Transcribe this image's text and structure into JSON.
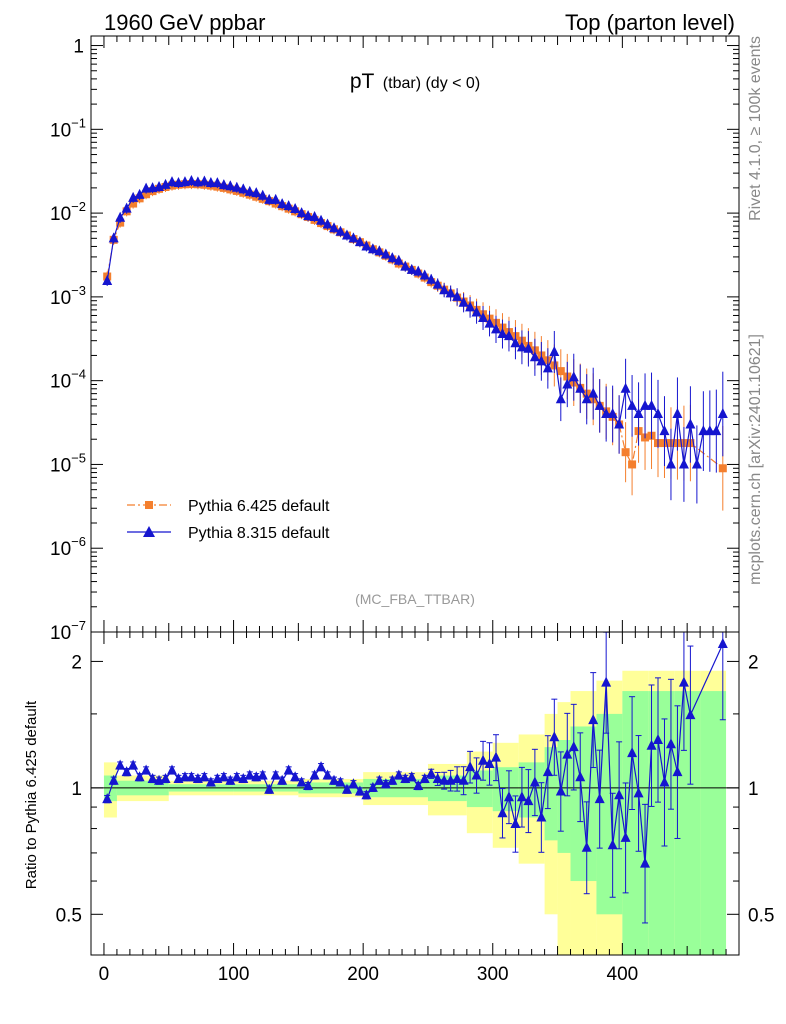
{
  "header": {
    "left": "1960 GeV ppbar",
    "right": "Top (parton level)"
  },
  "side": {
    "top": "Rivet 4.1.0, ≥ 100k events",
    "bottom": "mcplots.cern.ch [arXiv:2401.10621]"
  },
  "chart_data": [
    {
      "type": "line",
      "title": "pT",
      "title_sub": "(tbar) (dy < 0)",
      "analysis_tag": "(MC_FBA_TTBAR)",
      "xlabel": "",
      "ylabel": "",
      "yscale": "log",
      "xlim": [
        -10,
        490
      ],
      "ylim": [
        1e-07,
        1.3
      ],
      "y_ticks": [
        {
          "value": 1,
          "base": "1",
          "exp": ""
        },
        {
          "value": 0.1,
          "base": "10",
          "exp": "−1"
        },
        {
          "value": 0.01,
          "base": "10",
          "exp": "−2"
        },
        {
          "value": 0.001,
          "base": "10",
          "exp": "−3"
        },
        {
          "value": 0.0001,
          "base": "10",
          "exp": "−4"
        },
        {
          "value": 1e-05,
          "base": "10",
          "exp": "−5"
        },
        {
          "value": 1e-06,
          "base": "10",
          "exp": "−6"
        },
        {
          "value": 1e-07,
          "base": "10",
          "exp": "−7"
        }
      ],
      "legend": {
        "placement": "lower-left",
        "entries": [
          "Pythia 6.425 default",
          "Pythia 8.315 default"
        ]
      },
      "series": [
        {
          "name": "Pythia 6.425 default",
          "color": "#f47f2e",
          "style": "dash-dot-squares",
          "x": [
            2.5,
            7.5,
            12.5,
            17.5,
            22.5,
            27.5,
            32.5,
            37.5,
            42.5,
            47.5,
            52.5,
            57.5,
            62.5,
            67.5,
            72.5,
            77.5,
            82.5,
            87.5,
            92.5,
            97.5,
            102.5,
            107.5,
            112.5,
            117.5,
            122.5,
            127.5,
            132.5,
            137.5,
            142.5,
            147.5,
            152.5,
            157.5,
            162.5,
            167.5,
            172.5,
            177.5,
            182.5,
            187.5,
            192.5,
            197.5,
            202.5,
            207.5,
            212.5,
            217.5,
            222.5,
            227.5,
            232.5,
            237.5,
            242.5,
            247.5,
            252.5,
            257.5,
            262.5,
            267.5,
            272.5,
            277.5,
            282.5,
            287.5,
            292.5,
            297.5,
            302.5,
            307.5,
            312.5,
            317.5,
            322.5,
            327.5,
            332.5,
            337.5,
            342.5,
            347.5,
            352.5,
            357.5,
            362.5,
            367.5,
            372.5,
            377.5,
            382.5,
            387.5,
            392.5,
            397.5,
            402.5,
            407.5,
            412.5,
            417.5,
            422.5,
            427.5,
            432.5,
            437.5,
            442.5,
            447.5,
            452.5,
            477.5
          ],
          "y": [
            0.00175,
            0.0048,
            0.0077,
            0.0105,
            0.013,
            0.015,
            0.0168,
            0.0183,
            0.0195,
            0.0205,
            0.0213,
            0.0218,
            0.0221,
            0.0222,
            0.0221,
            0.0218,
            0.0213,
            0.0207,
            0.02,
            0.0192,
            0.0184,
            0.0175,
            0.0166,
            0.0157,
            0.0148,
            0.0139,
            0.013,
            0.0121,
            0.0113,
            0.0105,
            0.0097,
            0.009,
            0.0083,
            0.0076,
            0.007,
            0.0064,
            0.0059,
            0.0054,
            0.0049,
            0.0045,
            0.0041,
            0.0037,
            0.0034,
            0.0031,
            0.0028,
            0.0025,
            0.0023,
            0.0021,
            0.0019,
            0.0017,
            0.0015,
            0.00136,
            0.00122,
            0.0011,
            0.00098,
            0.00088,
            0.00079,
            0.0007,
            0.00062,
            0.00055,
            0.00049,
            0.00043,
            0.00038,
            0.00034,
            0.0003,
            0.00026,
            0.00023,
            0.0002,
            0.000175,
            0.000152,
            0.00013,
            0.000112,
            9.5e-05,
            8.2e-05,
            7e-05,
            6e-05,
            5e-05,
            4.3e-05,
            3.7e-05,
            3e-05,
            1.4e-05,
            1e-05,
            2.5e-05,
            2.1e-05,
            2.2e-05,
            1.8e-05,
            1.8e-05,
            1.8e-05,
            1.8e-05,
            1.8e-05,
            1.8e-05,
            9e-06
          ]
        },
        {
          "name": "Pythia 8.315 default",
          "color": "#1515cf",
          "style": "solid-triangles",
          "x": [
            2.5,
            7.5,
            12.5,
            17.5,
            22.5,
            27.5,
            32.5,
            37.5,
            42.5,
            47.5,
            52.5,
            57.5,
            62.5,
            67.5,
            72.5,
            77.5,
            82.5,
            87.5,
            92.5,
            97.5,
            102.5,
            107.5,
            112.5,
            117.5,
            122.5,
            127.5,
            132.5,
            137.5,
            142.5,
            147.5,
            152.5,
            157.5,
            162.5,
            167.5,
            172.5,
            177.5,
            182.5,
            187.5,
            192.5,
            197.5,
            202.5,
            207.5,
            212.5,
            217.5,
            222.5,
            227.5,
            232.5,
            237.5,
            242.5,
            247.5,
            252.5,
            257.5,
            262.5,
            267.5,
            272.5,
            277.5,
            282.5,
            287.5,
            292.5,
            297.5,
            302.5,
            307.5,
            312.5,
            317.5,
            322.5,
            327.5,
            332.5,
            337.5,
            342.5,
            347.5,
            352.5,
            357.5,
            362.5,
            367.5,
            372.5,
            377.5,
            382.5,
            387.5,
            392.5,
            397.5,
            402.5,
            407.5,
            412.5,
            417.5,
            422.5,
            427.5,
            432.5,
            437.5,
            442.5,
            447.5,
            452.5,
            457.5,
            462.5,
            467.5,
            472.5,
            477.5
          ],
          "y": [
            0.00155,
            0.005,
            0.0088,
            0.0113,
            0.0152,
            0.0165,
            0.0196,
            0.0199,
            0.0205,
            0.0217,
            0.0234,
            0.0229,
            0.0234,
            0.0242,
            0.0233,
            0.0238,
            0.0229,
            0.0228,
            0.0216,
            0.0209,
            0.0201,
            0.0192,
            0.0179,
            0.0173,
            0.0161,
            0.0144,
            0.0144,
            0.0128,
            0.0121,
            0.0112,
            0.01,
            0.0092,
            0.009,
            0.0081,
            0.0073,
            0.0066,
            0.006,
            0.0054,
            0.005,
            0.0045,
            0.004,
            0.0037,
            0.0035,
            0.0032,
            0.0029,
            0.0027,
            0.0023,
            0.0021,
            0.002,
            0.0018,
            0.0016,
            0.0014,
            0.0012,
            0.0011,
            0.001,
            0.00085,
            0.00075,
            0.00065,
            0.00056,
            0.00048,
            0.00041,
            0.00036,
            0.00034,
            0.00028,
            0.00025,
            0.00024,
            0.00019,
            0.00017,
            0.00014,
            0.00022,
            6e-05,
            9e-05,
            0.00011,
            8e-05,
            6e-05,
            7e-05,
            5e-05,
            4e-05,
            4e-05,
            3e-05,
            8e-05,
            5e-05,
            4e-05,
            5e-05,
            5e-05,
            4e-05,
            2.5e-05,
            1e-05,
            4e-05,
            1e-05,
            3e-05,
            1e-05,
            2.5e-05,
            2.5e-05,
            2.5e-05,
            4e-05
          ]
        }
      ]
    },
    {
      "type": "line",
      "ylabel": "Ratio to Pythia 6.425 default",
      "yscale": "log",
      "xlim": [
        -10,
        490
      ],
      "ylim": [
        0.4,
        2.35
      ],
      "x_ticks": [
        "0",
        "100",
        "200",
        "300",
        "400"
      ],
      "x_tick_values": [
        0,
        100,
        200,
        300,
        400
      ],
      "y_ticks": [
        "0.5",
        "1",
        "2"
      ],
      "y_tick_values": [
        0.5,
        1,
        2
      ],
      "reference_line": 1,
      "bands": [
        {
          "name": "stat uncertainty (yellow)",
          "color": "#ffff99",
          "x_edges": [
            0,
            10,
            50,
            100,
            150,
            200,
            250,
            280,
            300,
            320,
            340,
            350,
            360,
            380,
            400,
            420,
            440,
            460,
            480
          ],
          "half_width": [
            0.15,
            0.07,
            0.04,
            0.04,
            0.05,
            0.09,
            0.14,
            0.22,
            0.28,
            0.34,
            0.5,
            0.6,
            0.7,
            0.8,
            0.9,
            0.9,
            0.9,
            0.9,
            0.9
          ]
        },
        {
          "name": "stat uncertainty (green)",
          "color": "#99ff99",
          "x_edges": [
            0,
            10,
            50,
            100,
            150,
            200,
            250,
            280,
            300,
            320,
            340,
            350,
            360,
            380,
            400,
            420,
            440,
            460,
            480
          ],
          "half_width": [
            0.07,
            0.04,
            0.02,
            0.02,
            0.03,
            0.05,
            0.07,
            0.1,
            0.12,
            0.15,
            0.25,
            0.3,
            0.4,
            0.5,
            0.7,
            0.7,
            0.7,
            0.7,
            0.7
          ]
        }
      ],
      "series": [
        {
          "name": "Pythia 8.315 default / Pythia 6.425 default",
          "color": "#1515cf",
          "x": [
            2.5,
            7.5,
            12.5,
            17.5,
            22.5,
            27.5,
            32.5,
            37.5,
            42.5,
            47.5,
            52.5,
            57.5,
            62.5,
            67.5,
            72.5,
            77.5,
            82.5,
            87.5,
            92.5,
            97.5,
            102.5,
            107.5,
            112.5,
            117.5,
            122.5,
            127.5,
            132.5,
            137.5,
            142.5,
            147.5,
            152.5,
            157.5,
            162.5,
            167.5,
            172.5,
            177.5,
            182.5,
            187.5,
            192.5,
            197.5,
            202.5,
            207.5,
            212.5,
            217.5,
            222.5,
            227.5,
            232.5,
            237.5,
            242.5,
            247.5,
            252.5,
            257.5,
            262.5,
            267.5,
            272.5,
            277.5,
            282.5,
            287.5,
            292.5,
            297.5,
            302.5,
            307.5,
            312.5,
            317.5,
            322.5,
            327.5,
            332.5,
            337.5,
            342.5,
            347.5,
            352.5,
            357.5,
            362.5,
            367.5,
            372.5,
            377.5,
            382.5,
            387.5,
            392.5,
            397.5,
            402.5,
            407.5,
            412.5,
            417.5,
            422.5,
            427.5,
            432.5,
            437.5,
            442.5,
            447.5,
            452.5,
            477.5
          ],
          "y": [
            0.94,
            1.04,
            1.13,
            1.09,
            1.13,
            1.06,
            1.1,
            1.05,
            1.04,
            1.05,
            1.1,
            1.05,
            1.06,
            1.06,
            1.05,
            1.06,
            1.03,
            1.05,
            1.06,
            1.04,
            1.06,
            1.05,
            1.07,
            1.06,
            1.07,
            0.99,
            1.07,
            1.04,
            1.1,
            1.06,
            1.03,
            1.01,
            1.07,
            1.12,
            1.07,
            1.04,
            1.03,
            0.99,
            1.02,
            0.98,
            0.96,
            1.0,
            1.04,
            1.02,
            1.04,
            1.07,
            1.05,
            1.06,
            1.01,
            1.05,
            1.08,
            1.05,
            1.04,
            1.04,
            1.05,
            1.04,
            1.12,
            1.07,
            1.16,
            1.14,
            1.18,
            0.87,
            0.95,
            0.82,
            0.95,
            0.93,
            1.03,
            0.85,
            1.09,
            1.32,
            0.98,
            1.2,
            1.25,
            1.06,
            0.72,
            1.45,
            0.94,
            1.78,
            0.73,
            0.96,
            0.76,
            1.21,
            0.97,
            0.66,
            1.26,
            1.3,
            1.03,
            1.27,
            1.09,
            1.78,
            1.49,
            2.2
          ]
        }
      ]
    }
  ]
}
